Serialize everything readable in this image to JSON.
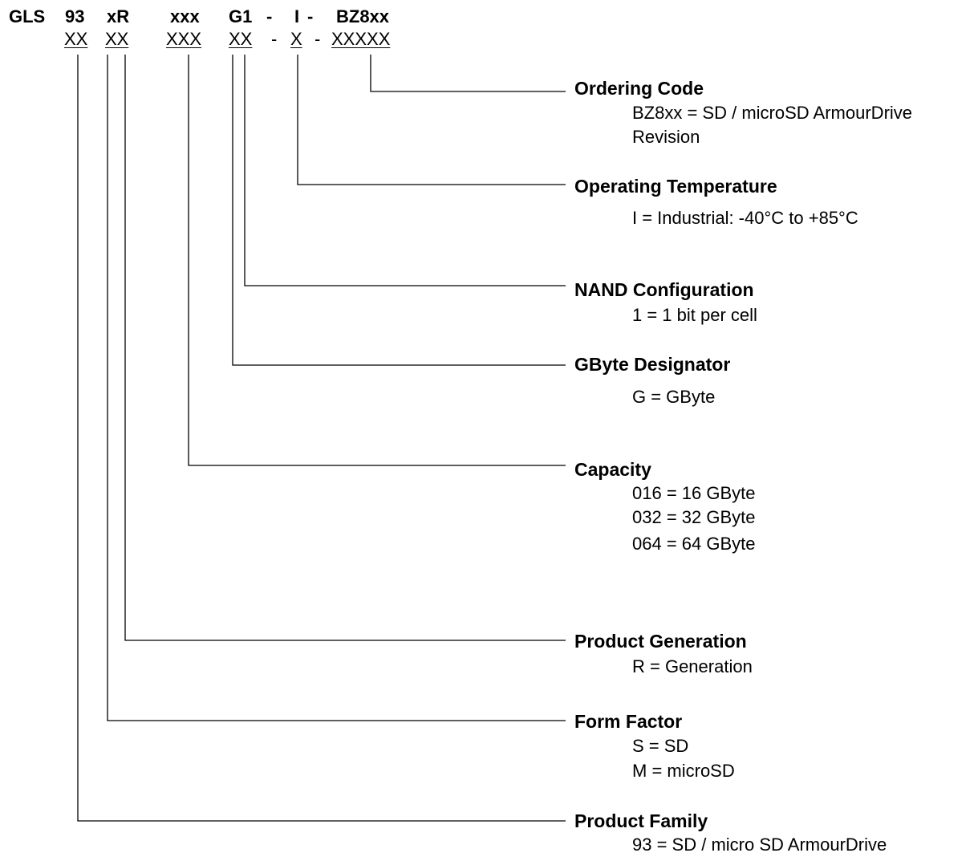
{
  "part_number": {
    "prefix": "GLS",
    "segments": [
      "93",
      "xR",
      "xxx",
      "G1",
      "-",
      "I",
      "-",
      "BZ8xx"
    ]
  },
  "placeholders": [
    "XX",
    "XX",
    "XXX",
    "XX",
    "-",
    "X",
    "-",
    "XXXXX"
  ],
  "fields": [
    {
      "title": "Ordering Code",
      "lines": [
        "BZ8xx = SD / microSD ArmourDrive",
        "Revision"
      ]
    },
    {
      "title": "Operating Temperature",
      "lines": [
        "I = Industrial: -40°C to +85°C"
      ]
    },
    {
      "title": "NAND Configuration",
      "lines": [
        "1 = 1 bit per cell"
      ]
    },
    {
      "title": "GByte Designator",
      "lines": [
        "G = GByte"
      ]
    },
    {
      "title": "Capacity",
      "lines": [
        "016 = 16 GByte",
        "032 = 32 GByte",
        "064 = 64 GByte"
      ]
    },
    {
      "title": "Product Generation",
      "lines": [
        "R = Generation"
      ]
    },
    {
      "title": "Form Factor",
      "lines": [
        "S = SD",
        "M = microSD"
      ]
    },
    {
      "title": "Product Family",
      "lines": [
        "93 = SD / micro SD ArmourDrive"
      ]
    }
  ]
}
